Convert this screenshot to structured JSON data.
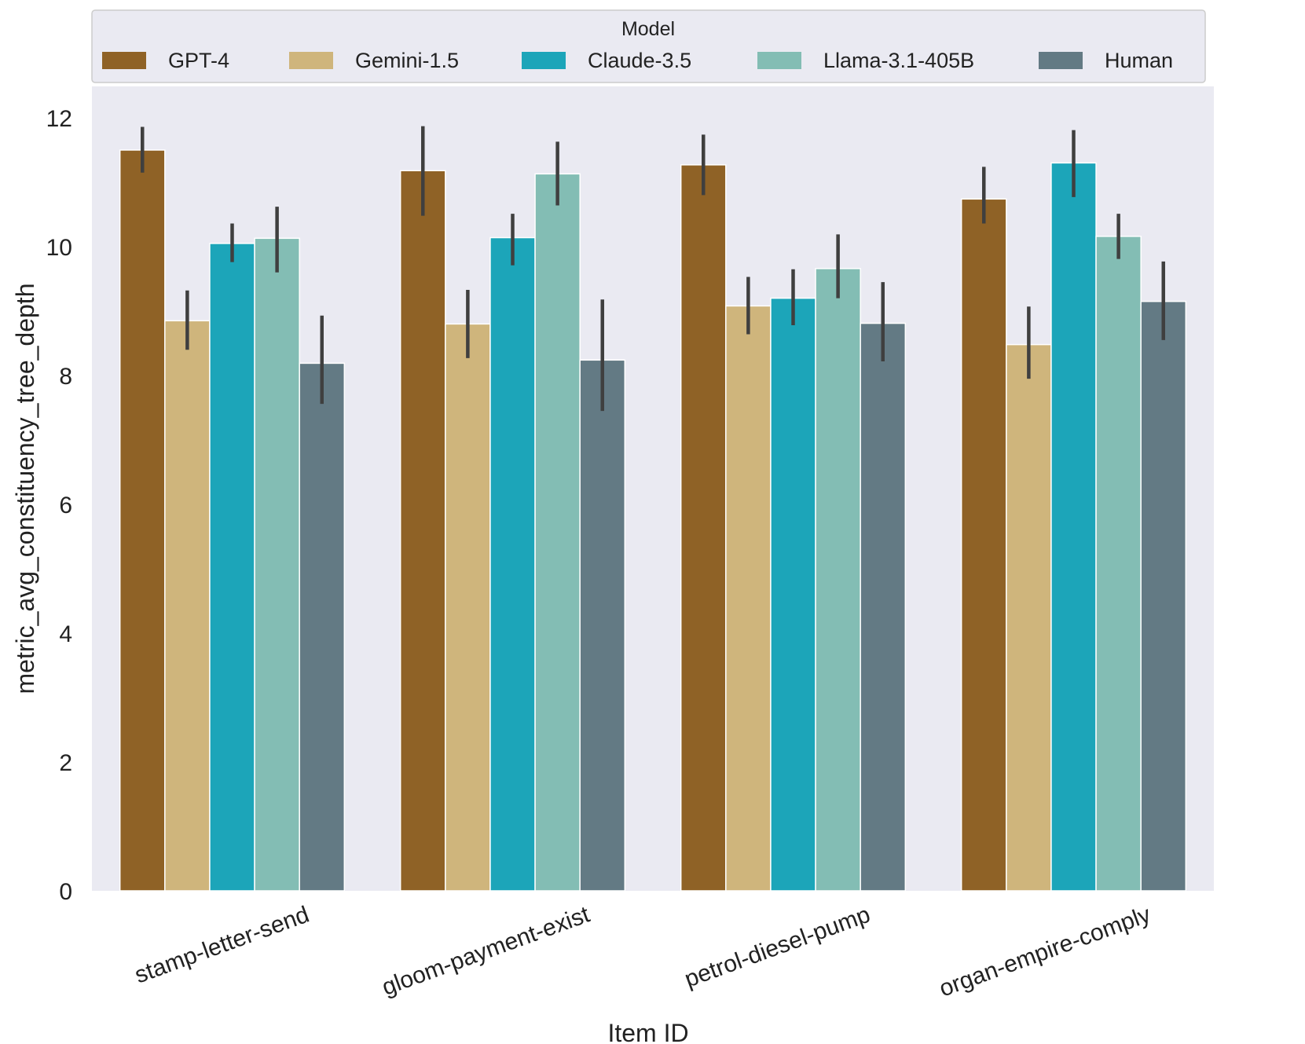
{
  "chart_data": {
    "type": "bar",
    "title": "",
    "xlabel": "Item ID",
    "ylabel": "metric_avg_constituency_tree_depth",
    "ylim": [
      0,
      12.4
    ],
    "yticks": [
      0,
      2,
      4,
      6,
      8,
      10,
      12
    ],
    "grid": false,
    "legend_title": "Model",
    "legend_position": "top",
    "categories": [
      "stamp-letter-send",
      "gloom-payment-exist",
      "petrol-diesel-pump",
      "organ-empire-comply"
    ],
    "series": [
      {
        "name": "GPT-4",
        "color": "#8f6226",
        "values": [
          11.5,
          11.18,
          11.27,
          10.74
        ],
        "ci_low": [
          11.15,
          10.48,
          10.8,
          10.36
        ],
        "ci_high": [
          11.86,
          11.87,
          11.74,
          11.24
        ]
      },
      {
        "name": "Gemini-1.5",
        "color": "#cfb57c",
        "values": [
          8.85,
          8.8,
          9.08,
          8.48
        ],
        "ci_low": [
          8.4,
          8.27,
          8.64,
          7.95
        ],
        "ci_high": [
          9.32,
          9.33,
          9.53,
          9.07
        ]
      },
      {
        "name": "Claude-3.5",
        "color": "#1ca5b9",
        "values": [
          10.05,
          10.14,
          9.2,
          11.3
        ],
        "ci_low": [
          9.76,
          9.71,
          8.78,
          10.77
        ],
        "ci_high": [
          10.36,
          10.51,
          9.65,
          11.81
        ]
      },
      {
        "name": "Llama-3.1-405B",
        "color": "#83bdb4",
        "values": [
          10.13,
          11.13,
          9.66,
          10.16
        ],
        "ci_low": [
          9.6,
          10.64,
          9.2,
          9.81
        ],
        "ci_high": [
          10.62,
          11.63,
          10.19,
          10.51
        ]
      },
      {
        "name": "Human",
        "color": "#637a84",
        "values": [
          8.19,
          8.24,
          8.81,
          9.15
        ],
        "ci_low": [
          7.56,
          7.45,
          8.22,
          8.55
        ],
        "ci_high": [
          8.93,
          9.18,
          9.45,
          9.77
        ]
      }
    ]
  }
}
